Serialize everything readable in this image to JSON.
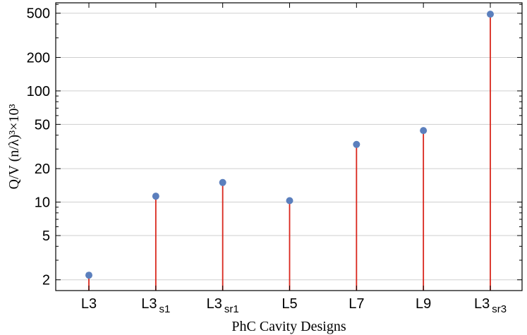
{
  "chart_data": {
    "type": "scatter",
    "style": "stem",
    "scale_y": "log",
    "categories": [
      {
        "base": "L3",
        "sub": ""
      },
      {
        "base": "L3",
        "sub": "s1"
      },
      {
        "base": "L3",
        "sub": "sr1"
      },
      {
        "base": "L5",
        "sub": ""
      },
      {
        "base": "L7",
        "sub": ""
      },
      {
        "base": "L9",
        "sub": ""
      },
      {
        "base": "L3",
        "sub": "sr3"
      }
    ],
    "values": [
      2.2,
      11.3,
      15,
      10.3,
      33,
      44,
      490
    ],
    "xlabel": "PhC Cavity Designs",
    "ylabel": "Q/V (n/λ)³×10³",
    "ylim": [
      1.6,
      620
    ],
    "yticks_major": [
      2,
      5,
      10,
      20,
      50,
      100,
      200,
      500
    ],
    "grid": true,
    "colors": {
      "stem": "#d9261c",
      "marker": "#5b7fbd",
      "grid": "#cfcfcf"
    }
  }
}
